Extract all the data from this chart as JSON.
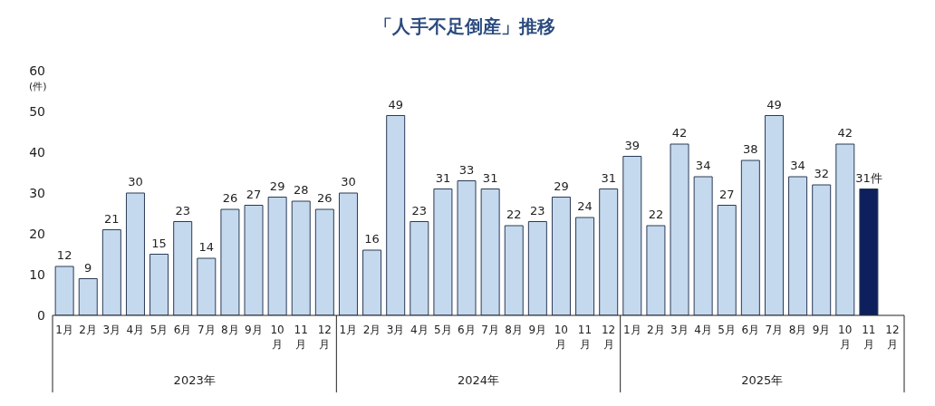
{
  "chart_data": {
    "type": "bar",
    "title": "「人手不足倒産」推移",
    "ylabel": "(件)",
    "categories": [
      "1月",
      "2月",
      "3月",
      "4月",
      "5月",
      "6月",
      "7月",
      "8月",
      "9月",
      "10月",
      "11月",
      "12月",
      "1月",
      "2月",
      "3月",
      "4月",
      "5月",
      "6月",
      "7月",
      "8月",
      "9月",
      "10月",
      "11月",
      "12月",
      "1月",
      "2月",
      "3月",
      "4月",
      "5月",
      "6月",
      "7月",
      "8月",
      "9月",
      "10月",
      "11月",
      "12月"
    ],
    "values": [
      12,
      9,
      21,
      30,
      15,
      23,
      14,
      26,
      27,
      29,
      28,
      26,
      30,
      16,
      49,
      23,
      31,
      33,
      31,
      22,
      23,
      29,
      24,
      31,
      39,
      22,
      42,
      34,
      27,
      38,
      49,
      34,
      32,
      42,
      31,
      null
    ],
    "colors": [
      "#c5d9ee",
      "#c5d9ee",
      "#c5d9ee",
      "#c5d9ee",
      "#c5d9ee",
      "#c5d9ee",
      "#c5d9ee",
      "#c5d9ee",
      "#c5d9ee",
      "#c5d9ee",
      "#c5d9ee",
      "#c5d9ee",
      "#c5d9ee",
      "#c5d9ee",
      "#c5d9ee",
      "#c5d9ee",
      "#c5d9ee",
      "#c5d9ee",
      "#c5d9ee",
      "#c5d9ee",
      "#c5d9ee",
      "#c5d9ee",
      "#c5d9ee",
      "#c5d9ee",
      "#c5d9ee",
      "#c5d9ee",
      "#c5d9ee",
      "#c5d9ee",
      "#c5d9ee",
      "#c5d9ee",
      "#c5d9ee",
      "#c5d9ee",
      "#c5d9ee",
      "#c5d9ee",
      "#0d1f5c",
      "#c5d9ee"
    ],
    "value_labels": [
      "12",
      "9",
      "21",
      "30",
      "15",
      "23",
      "14",
      "26",
      "27",
      "29",
      "28",
      "26",
      "30",
      "16",
      "49",
      "23",
      "31",
      "33",
      "31",
      "22",
      "23",
      "29",
      "24",
      "31",
      "39",
      "22",
      "42",
      "34",
      "27",
      "38",
      "49",
      "34",
      "32",
      "42",
      "31件",
      null
    ],
    "ylim": [
      0,
      60
    ],
    "yticks": [
      0,
      10,
      20,
      30,
      40,
      50,
      60
    ],
    "grid": false,
    "annotations": [
      "2023年",
      "2024年",
      "2025年"
    ]
  }
}
